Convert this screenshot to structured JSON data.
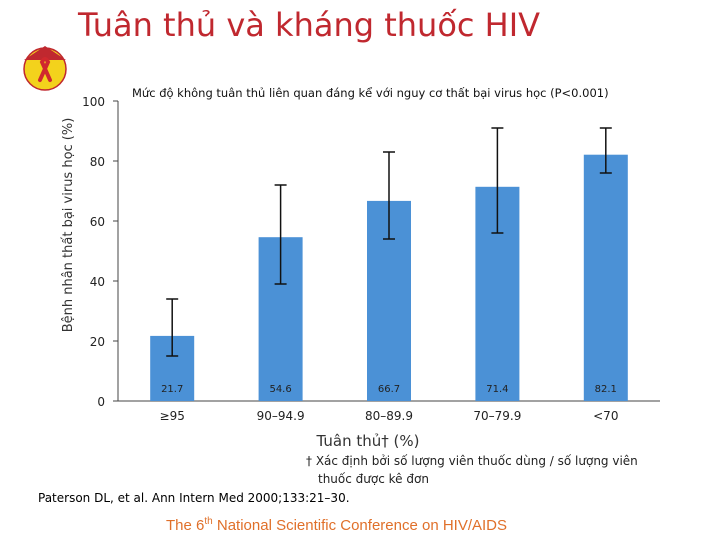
{
  "slide": {
    "title": "Tuân thủ và kháng thuốc HIV",
    "footnote_line1": "† Xác định bởi số lượng viên thuốc dùng / số lượng viên",
    "footnote_line2": "thuốc được kê đơn",
    "reference": "Paterson DL, et al. Ann Intern Med 2000;133:21–30.",
    "conference_pre": "The 6",
    "conference_sup": "th",
    "conference_post": " National Scientific Conference on HIV/AIDS"
  },
  "colors": {
    "title": "#c0282f",
    "bar": "#4b91d6",
    "conference": "#e0702a",
    "logo_bg": "#f3d21c",
    "ribbon": "#d0282e"
  },
  "logo": {
    "icon": "red-ribbon-icon"
  },
  "chart_data": {
    "type": "bar",
    "annotation": "Mức độ không tuân thủ liên quan đáng kể với nguy cơ thất bại virus học  (P<0.001)",
    "xlabel": "Tuân thủ† (%)",
    "ylabel": "Bệnh nhân thất bại virus học (%)",
    "ylim": [
      0,
      100
    ],
    "yticks": [
      "0",
      "20",
      "40",
      "60",
      "80",
      "100"
    ],
    "categories": [
      "≥95",
      "90–94.9",
      "80–89.9",
      "70–79.9",
      "<70"
    ],
    "values": [
      21.7,
      54.6,
      66.7,
      71.4,
      82.1
    ],
    "value_labels": [
      "21.7",
      "54.6",
      "66.7",
      "71.4",
      "82.1"
    ],
    "error_low": [
      15,
      39,
      54,
      56,
      76
    ],
    "error_high": [
      34,
      72,
      83,
      91,
      91
    ]
  }
}
